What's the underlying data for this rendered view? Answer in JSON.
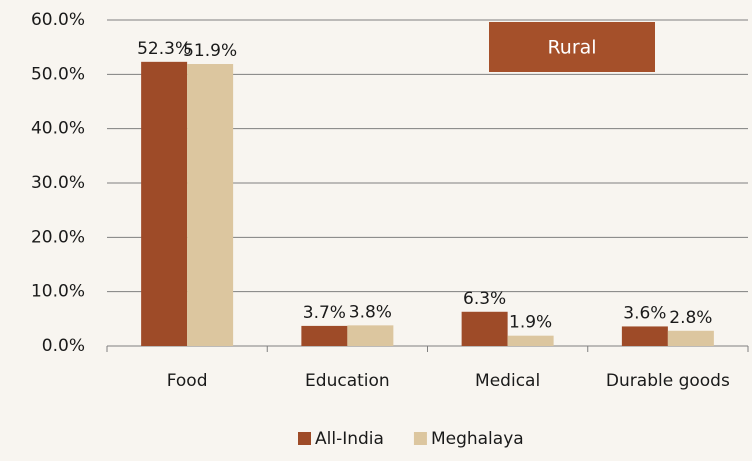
{
  "chart_data": {
    "type": "bar",
    "annotation": "Rural",
    "categories": [
      "Food",
      "Education",
      "Medical",
      "Durable goods"
    ],
    "series": [
      {
        "name": "All-India",
        "color": "#9e4b28",
        "values": [
          52.3,
          3.7,
          6.3,
          3.6
        ],
        "value_labels": [
          "52.3%",
          "3.7%",
          "6.3%",
          "3.6%"
        ]
      },
      {
        "name": "Meghalaya",
        "color": "#dcc69f",
        "values": [
          51.9,
          3.8,
          1.9,
          2.8
        ],
        "value_labels": [
          "51.9%",
          "3.8%",
          "1.9%",
          "2.8%"
        ]
      }
    ],
    "ylim": [
      0,
      60
    ],
    "yticks": [
      {
        "value": 0,
        "label": "0.0%"
      },
      {
        "value": 10,
        "label": "10.0%"
      },
      {
        "value": 20,
        "label": "20.0%"
      },
      {
        "value": 30,
        "label": "30.0%"
      },
      {
        "value": 40,
        "label": "40.0%"
      },
      {
        "value": 50,
        "label": "50.0%"
      },
      {
        "value": 60,
        "label": "60.0%"
      }
    ],
    "grid": true,
    "legend": "bottom"
  }
}
